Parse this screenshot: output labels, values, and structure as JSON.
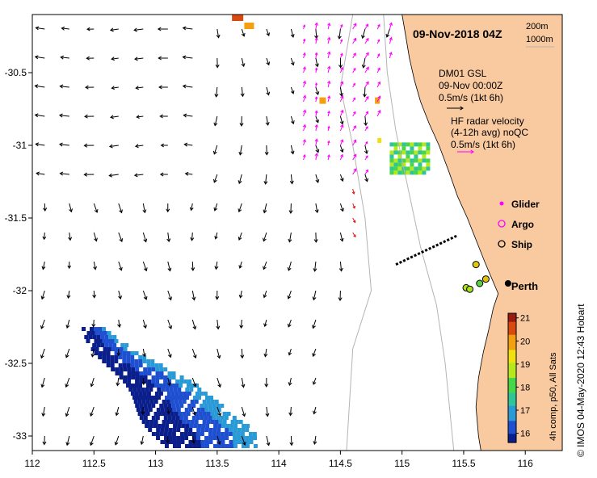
{
  "title": "09-Nov-2018 04Z",
  "depth_legend": {
    "contour_1": "200m",
    "contour_2": "1000m"
  },
  "model_legend": {
    "line1": "DM01 GSL",
    "line2": "09-Nov 00:00Z",
    "line3": "0.5m/s (1kt 6h)"
  },
  "radar_legend": {
    "line1": "HF radar velocity",
    "line2": "(4-12h avg) noQC",
    "line3": "0.5m/s (1kt 6h)"
  },
  "symbol_legend": [
    {
      "label": "Glider",
      "color": "#ff00ff",
      "shape": "dot"
    },
    {
      "label": "Argo",
      "color": "#ff00ff",
      "shape": "ring"
    },
    {
      "label": "Ship",
      "color": "#000000",
      "shape": "ring"
    }
  ],
  "city_label": "Perth",
  "colorbar": {
    "label": "4h comp, p50, All Sats",
    "ticks": [
      "21",
      "20",
      "19",
      "18",
      "17",
      "16"
    ],
    "min": 15.6,
    "max": 21.2,
    "colors": [
      "#0a1e8c",
      "#1f4fd1",
      "#2a9ad6",
      "#2fc49a",
      "#46d64a",
      "#b6e81e",
      "#f0e010",
      "#f2a010",
      "#d84a10",
      "#9a1a10"
    ]
  },
  "credit": "© IMOS 04-May-2020 12:43 Hobart",
  "colors": {
    "land": "#f9c9a0",
    "model_arrow": "#000000",
    "radar_arrow_north": "#ff00ff",
    "radar_arrow_south": "#e01818",
    "depth_contour": "#b4b4b4"
  },
  "chart_data": {
    "type": "map",
    "xlim": [
      112,
      116.3
    ],
    "ylim": [
      -33.1,
      -30.1
    ],
    "x_ticks": [
      "112",
      "112.5",
      "113",
      "113.5",
      "114",
      "114.5",
      "115",
      "115.5",
      "116"
    ],
    "y_ticks": [
      "-30.5",
      "-31",
      "-31.5",
      "-32",
      "-32.5",
      "-33"
    ],
    "city": {
      "name": "Perth",
      "lon": 115.86,
      "lat": -31.95
    },
    "ship_track_dots": [
      [
        115.6,
        -31.82
      ],
      [
        115.52,
        -31.98
      ],
      [
        115.55,
        -31.99
      ],
      [
        115.63,
        -31.95
      ],
      [
        115.68,
        -31.92
      ]
    ],
    "glider_transect": {
      "start": [
        114.95,
        -31.82
      ],
      "end": [
        115.45,
        -31.62
      ]
    }
  }
}
